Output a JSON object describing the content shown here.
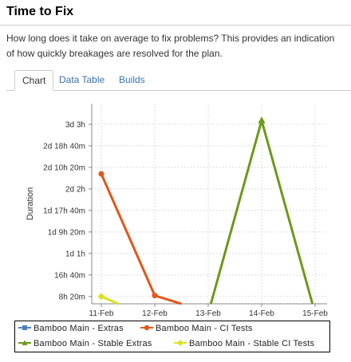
{
  "page": {
    "title": "Time to Fix",
    "description": "How long does it take on average to fix problems? This provides an indication of how quickly breakages are resolved for the plan."
  },
  "tabs": [
    {
      "label": "Chart",
      "active": true
    },
    {
      "label": "Data Table",
      "active": false
    },
    {
      "label": "Builds",
      "active": false
    }
  ],
  "chart_data": {
    "type": "line",
    "xlabel": "",
    "ylabel": "Duration",
    "x": [
      "11-Feb",
      "12-Feb",
      "13-Feb",
      "14-Feb",
      "15-Feb"
    ],
    "y_tick_labels": [
      "8h 20m",
      "16h 40m",
      "1d 1h",
      "1d 9h 20m",
      "1d 17h 40m",
      "2d 2h",
      "2d 10h 20m",
      "2d 18h 40m",
      "3d 3h"
    ],
    "y_tick_hours": [
      8.333,
      16.667,
      25,
      33.333,
      41.667,
      50,
      58.333,
      66.667,
      75
    ],
    "ylim_hours": [
      5.5,
      83
    ],
    "grid": true,
    "legend_position": "bottom",
    "series": [
      {
        "name": "Bamboo Main - Extras",
        "color": "#4f81bd",
        "marker": "square",
        "points": []
      },
      {
        "name": "Bamboo Main - CI Tests",
        "color": "#e0571b",
        "marker": "circle",
        "points": [
          [
            0,
            55.8
          ],
          [
            1,
            8.7
          ],
          [
            1.5,
            5.5
          ]
        ]
      },
      {
        "name": "Bamboo Main - Stable Extras",
        "color": "#6b9a1a",
        "marker": "triangle",
        "points": [
          [
            2.05,
            5.5
          ],
          [
            3,
            76.5
          ],
          [
            3.95,
            5.5
          ]
        ]
      },
      {
        "name": "Bamboo Main - Stable CI Tests",
        "color": "#dde022",
        "marker": "diamond",
        "points": [
          [
            0,
            8.3
          ],
          [
            0.32,
            5.5
          ]
        ]
      }
    ]
  }
}
